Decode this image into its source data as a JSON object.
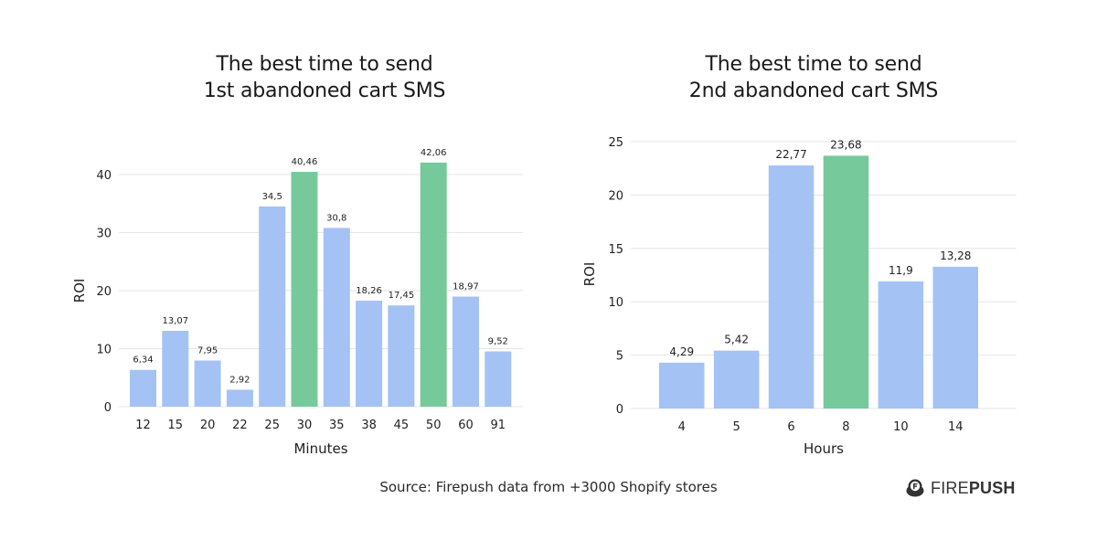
{
  "chart_data": [
    {
      "type": "bar",
      "title": "The best time to send 1st abandoned cart SMS",
      "title_lines": [
        "The best time to send",
        "1st abandoned cart SMS"
      ],
      "xlabel": "Minutes",
      "ylabel": "ROI",
      "ylim": [
        0,
        45
      ],
      "yticks": [
        0,
        10,
        20,
        30,
        40
      ],
      "grid": true,
      "categories": [
        "12",
        "15",
        "20",
        "22",
        "25",
        "30",
        "35",
        "38",
        "45",
        "50",
        "60",
        "91"
      ],
      "values": [
        6.34,
        13.07,
        7.95,
        2.92,
        34.5,
        40.46,
        30.8,
        18.26,
        17.45,
        42.06,
        18.97,
        9.52
      ],
      "labels": [
        "6,34",
        "13,07",
        "7,95",
        "2,92",
        "34,5",
        "40,46",
        "30,8",
        "18,26",
        "17,45",
        "42,06",
        "18,97",
        "9,52"
      ],
      "highlighted": [
        "30",
        "50"
      ]
    },
    {
      "type": "bar",
      "title": "The best time to send 2nd abandoned cart SMS",
      "title_lines": [
        "The best time to send",
        "2nd abandoned cart SMS"
      ],
      "xlabel": "Hours",
      "ylabel": "ROI",
      "ylim": [
        0,
        25
      ],
      "yticks": [
        0,
        5,
        10,
        15,
        20,
        25
      ],
      "grid": true,
      "categories": [
        "4",
        "5",
        "6",
        "8",
        "10",
        "14"
      ],
      "values": [
        4.29,
        5.42,
        22.77,
        23.68,
        11.9,
        13.28
      ],
      "labels": [
        "4,29",
        "5,42",
        "22,77",
        "23,68",
        "11,9",
        "13,28"
      ],
      "highlighted": [
        "8"
      ]
    }
  ],
  "colors": {
    "bar": "#a4c2f4",
    "highlight": "#76c99a",
    "grid": "#e6e6e6",
    "text": "#222222"
  },
  "footer": {
    "source": "Source: Firepush data from +3000 Shopify stores",
    "logo_part1": "FIRE",
    "logo_part2": "PUSH",
    "logo_icon": "firepush-logo-icon"
  }
}
